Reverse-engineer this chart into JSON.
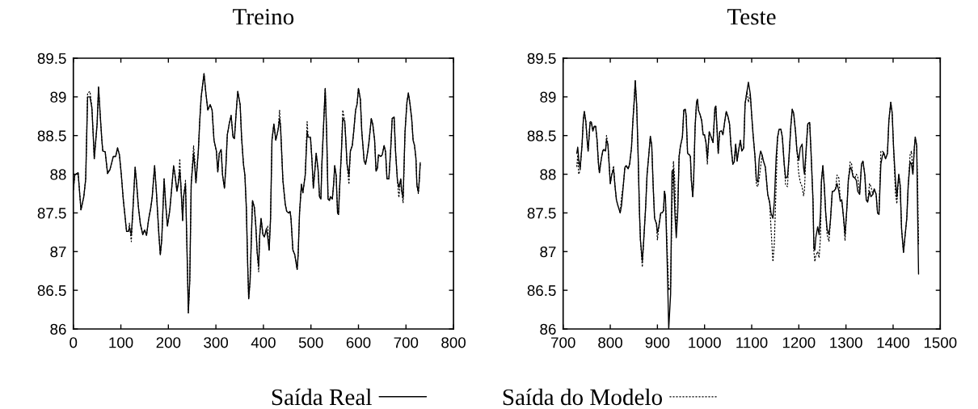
{
  "chart_data": [
    {
      "type": "line",
      "title": "Treino",
      "legend": "bottom",
      "xlim": [
        0,
        800
      ],
      "xticks": [
        0,
        100,
        200,
        300,
        400,
        500,
        600,
        700,
        800
      ],
      "ylim": [
        86,
        89.5
      ],
      "yticks": [
        86,
        86.5,
        87,
        87.5,
        88,
        88.5,
        89,
        89.5
      ],
      "x": [
        0,
        3,
        10,
        16,
        22,
        26,
        30,
        35,
        39,
        42,
        44,
        50,
        53,
        57,
        60,
        62,
        67,
        72,
        77,
        84,
        89,
        93,
        97,
        101,
        105,
        108,
        112,
        116,
        118,
        122,
        125,
        130,
        133,
        137,
        141,
        146,
        150,
        154,
        158,
        163,
        166,
        171,
        175,
        180,
        183,
        186,
        191,
        194,
        198,
        203,
        206,
        211,
        214,
        218,
        221,
        224,
        226,
        230,
        232,
        236,
        240,
        242,
        245,
        248,
        253,
        256,
        258,
        263,
        266,
        269,
        275,
        279,
        283,
        288,
        292,
        296,
        301,
        304,
        307,
        311,
        314,
        318,
        321,
        324,
        328,
        332,
        336,
        339,
        343,
        346,
        351,
        354,
        358,
        361,
        364,
        367,
        369,
        372,
        377,
        381,
        384,
        387,
        390,
        392,
        395,
        399,
        402,
        406,
        409,
        412,
        415,
        418,
        422,
        426,
        431,
        434,
        436,
        441,
        446,
        449,
        453,
        456,
        458,
        462,
        466,
        471,
        473,
        476,
        480,
        483,
        488,
        492,
        494,
        499,
        502,
        505,
        508,
        511,
        515,
        518,
        521,
        523,
        526,
        530,
        533,
        536,
        539,
        541,
        545,
        548,
        550,
        553,
        556,
        558,
        560,
        564,
        567,
        571,
        573,
        576,
        580,
        583,
        587,
        590,
        594,
        597,
        600,
        604,
        607,
        612,
        615,
        619,
        622,
        627,
        630,
        634,
        637,
        640,
        642,
        647,
        650,
        654,
        657,
        660,
        664,
        668,
        671,
        675,
        678,
        682,
        685,
        689,
        691,
        694,
        698,
        702,
        705,
        708,
        712,
        715,
        718,
        721,
        723,
        726,
        728,
        730
      ],
      "series": [
        {
          "name": "Saída Real",
          "color": "#000000",
          "line_style": "solid",
          "values": [
            87.8,
            87.99,
            88.02,
            87.54,
            87.71,
            87.94,
            89.0,
            89.0,
            88.86,
            88.48,
            88.2,
            88.65,
            89.13,
            88.72,
            88.44,
            88.3,
            88.29,
            88.01,
            88.06,
            88.23,
            88.23,
            88.34,
            88.25,
            87.99,
            87.68,
            87.5,
            87.26,
            87.26,
            87.31,
            87.22,
            87.5,
            88.09,
            87.89,
            87.57,
            87.36,
            87.22,
            87.28,
            87.21,
            87.4,
            87.57,
            87.71,
            88.11,
            87.75,
            87.22,
            86.96,
            87.15,
            87.94,
            87.64,
            87.33,
            87.54,
            87.75,
            88.11,
            87.99,
            87.78,
            87.89,
            88.04,
            87.89,
            87.4,
            87.71,
            87.87,
            86.8,
            86.21,
            86.63,
            87.87,
            88.27,
            88.06,
            87.89,
            88.3,
            88.69,
            89.0,
            89.3,
            89.04,
            88.83,
            88.9,
            88.83,
            88.44,
            88.3,
            88.03,
            88.27,
            88.32,
            87.99,
            87.82,
            88.1,
            88.51,
            88.65,
            88.76,
            88.48,
            88.46,
            88.83,
            89.07,
            88.9,
            88.48,
            88.13,
            87.99,
            87.57,
            86.81,
            86.39,
            86.63,
            87.66,
            87.57,
            87.33,
            86.98,
            86.81,
            87.19,
            87.43,
            87.22,
            87.19,
            87.29,
            87.19,
            87.02,
            87.43,
            88.44,
            88.65,
            88.44,
            88.58,
            88.72,
            88.62,
            87.92,
            87.61,
            87.52,
            87.5,
            87.52,
            87.43,
            87.02,
            86.96,
            86.77,
            86.95,
            87.5,
            87.87,
            87.76,
            87.99,
            88.55,
            88.48,
            88.48,
            88.2,
            87.82,
            88.03,
            88.27,
            88.06,
            87.71,
            87.68,
            88.13,
            88.55,
            89.11,
            88.55,
            87.68,
            87.66,
            87.71,
            87.68,
            87.89,
            88.11,
            87.99,
            87.5,
            87.48,
            87.78,
            88.27,
            88.72,
            88.69,
            88.48,
            88.13,
            87.99,
            88.3,
            88.37,
            88.55,
            88.83,
            88.9,
            89.11,
            88.97,
            88.55,
            88.17,
            88.13,
            88.27,
            88.41,
            88.72,
            88.65,
            88.44,
            88.04,
            88.08,
            88.25,
            88.23,
            88.25,
            88.37,
            88.29,
            87.94,
            87.94,
            88.34,
            88.72,
            88.74,
            88.3,
            87.92,
            87.83,
            87.94,
            87.78,
            87.7,
            88.55,
            88.93,
            89.05,
            88.93,
            88.72,
            88.44,
            88.37,
            88.2,
            87.86,
            87.77,
            87.92,
            88.15
          ]
        },
        {
          "name": "Saída do Modelo",
          "color": "#000000",
          "line_style": "dotted",
          "values": [
            87.8,
            87.99,
            88.02,
            87.54,
            87.71,
            87.94,
            89.05,
            89.07,
            88.86,
            88.48,
            88.2,
            88.65,
            89.13,
            88.72,
            88.44,
            88.3,
            88.29,
            88.01,
            88.06,
            88.23,
            88.23,
            88.34,
            88.25,
            87.99,
            87.68,
            87.5,
            87.26,
            87.26,
            87.37,
            87.13,
            87.5,
            88.09,
            87.89,
            87.57,
            87.36,
            87.22,
            87.28,
            87.21,
            87.4,
            87.57,
            87.71,
            88.11,
            87.75,
            87.22,
            86.96,
            87.15,
            87.94,
            87.64,
            87.33,
            87.54,
            87.75,
            88.11,
            87.99,
            87.78,
            87.89,
            88.2,
            87.89,
            87.4,
            87.71,
            87.92,
            86.8,
            86.21,
            86.63,
            87.87,
            88.37,
            88.15,
            87.89,
            88.3,
            88.69,
            89.0,
            89.3,
            89.04,
            88.83,
            88.9,
            88.83,
            88.44,
            88.3,
            88.03,
            88.27,
            88.32,
            87.99,
            87.82,
            88.1,
            88.51,
            88.65,
            88.76,
            88.48,
            88.46,
            88.83,
            89.07,
            88.9,
            88.48,
            88.13,
            87.99,
            87.57,
            86.81,
            86.39,
            86.63,
            87.66,
            87.57,
            87.33,
            86.98,
            86.74,
            87.19,
            87.43,
            87.22,
            87.19,
            87.29,
            87.33,
            87.02,
            87.43,
            88.44,
            88.65,
            88.44,
            88.58,
            88.83,
            88.62,
            87.92,
            87.61,
            87.52,
            87.5,
            87.52,
            87.43,
            87.02,
            86.96,
            86.77,
            86.95,
            87.5,
            87.87,
            87.76,
            87.99,
            88.68,
            88.48,
            88.48,
            88.2,
            87.82,
            88.03,
            88.27,
            88.06,
            87.71,
            87.68,
            88.13,
            88.55,
            89.11,
            88.55,
            87.68,
            87.66,
            87.71,
            87.68,
            87.89,
            88.11,
            87.99,
            87.5,
            87.48,
            87.78,
            88.27,
            88.83,
            88.69,
            88.48,
            88.13,
            87.87,
            88.3,
            88.37,
            88.55,
            88.83,
            88.9,
            89.11,
            88.97,
            88.55,
            88.17,
            88.13,
            88.27,
            88.41,
            88.72,
            88.65,
            88.44,
            88.04,
            88.08,
            88.25,
            88.23,
            88.25,
            88.37,
            88.29,
            87.94,
            87.94,
            88.34,
            88.72,
            88.74,
            88.3,
            87.92,
            87.7,
            87.94,
            87.78,
            87.63,
            88.55,
            88.93,
            89.05,
            88.93,
            88.72,
            88.44,
            88.37,
            88.2,
            87.86,
            87.75,
            87.92,
            88.15
          ]
        }
      ]
    },
    {
      "type": "line",
      "title": "Teste",
      "xlim": [
        700,
        1500
      ],
      "xticks": [
        700,
        800,
        900,
        1000,
        1100,
        1200,
        1300,
        1400,
        1500
      ],
      "ylim": [
        86,
        89.5
      ],
      "yticks": [
        86,
        86.5,
        87,
        87.5,
        88,
        88.5,
        89,
        89.5
      ],
      "x": [
        729,
        731,
        733,
        736,
        740,
        743,
        745,
        748,
        751,
        753,
        755,
        757,
        760,
        763,
        766,
        769,
        772,
        775,
        777,
        780,
        784,
        786,
        790,
        792,
        795,
        798,
        800,
        803,
        807,
        810,
        813,
        816,
        821,
        824,
        828,
        831,
        834,
        838,
        841,
        845,
        848,
        851,
        853,
        856,
        859,
        862,
        864,
        868,
        871,
        875,
        878,
        882,
        885,
        888,
        891,
        894,
        898,
        900,
        903,
        907,
        910,
        913,
        915,
        917,
        921,
        924,
        928,
        931,
        934,
        937,
        940,
        943,
        946,
        949,
        953,
        956,
        959,
        961,
        964,
        968,
        970,
        972,
        975,
        977,
        980,
        983,
        985,
        987,
        991,
        994,
        997,
        1000,
        1003,
        1006,
        1008,
        1010,
        1014,
        1018,
        1022,
        1024,
        1029,
        1032,
        1036,
        1039,
        1043,
        1046,
        1050,
        1053,
        1056,
        1060,
        1063,
        1066,
        1069,
        1072,
        1076,
        1079,
        1083,
        1086,
        1090,
        1093,
        1097,
        1100,
        1103,
        1107,
        1110,
        1113,
        1116,
        1119,
        1122,
        1125,
        1129,
        1132,
        1134,
        1138,
        1141,
        1145,
        1148,
        1152,
        1155,
        1158,
        1162,
        1165,
        1169,
        1172,
        1176,
        1179,
        1183,
        1186,
        1189,
        1193,
        1196,
        1200,
        1203,
        1207,
        1210,
        1212,
        1216,
        1219,
        1223,
        1226,
        1230,
        1232,
        1234,
        1236,
        1240,
        1243,
        1246,
        1248,
        1251,
        1254,
        1257,
        1260,
        1264,
        1267,
        1271,
        1274,
        1278,
        1281,
        1285,
        1288,
        1291,
        1295,
        1298,
        1302,
        1305,
        1309,
        1312,
        1315,
        1319,
        1322,
        1325,
        1329,
        1333,
        1336,
        1340,
        1343,
        1346,
        1350,
        1353,
        1357,
        1360,
        1364,
        1367,
        1370,
        1374,
        1377,
        1380,
        1384,
        1388,
        1391,
        1395,
        1398,
        1401,
        1405,
        1408,
        1412,
        1415,
        1418,
        1422,
        1425,
        1429,
        1432,
        1436,
        1439,
        1442,
        1445,
        1447,
        1450,
        1452,
        1454
      ],
      "series": [
        {
          "color": "#000000",
          "line_style": "solid",
          "values": [
            88.27,
            88.35,
            88.2,
            88.07,
            88.37,
            88.72,
            88.81,
            88.69,
            88.44,
            88.3,
            88.48,
            88.65,
            88.67,
            88.56,
            88.62,
            88.62,
            88.44,
            88.13,
            88.02,
            88.16,
            88.3,
            88.32,
            88.3,
            88.44,
            88.39,
            88.09,
            87.88,
            87.99,
            88.07,
            87.85,
            87.67,
            87.6,
            87.5,
            87.6,
            87.88,
            88.09,
            88.11,
            88.07,
            88.13,
            88.34,
            88.69,
            88.97,
            89.21,
            88.9,
            88.27,
            87.5,
            87.15,
            86.88,
            87.15,
            87.57,
            87.99,
            88.27,
            88.49,
            88.37,
            87.85,
            87.43,
            87.36,
            87.25,
            87.32,
            87.5,
            87.5,
            87.53,
            87.78,
            87.71,
            86.8,
            86.0,
            86.45,
            88.04,
            88.06,
            87.5,
            87.18,
            87.5,
            88.23,
            88.37,
            88.48,
            88.83,
            88.84,
            88.76,
            88.27,
            88.25,
            88.23,
            87.92,
            87.71,
            87.95,
            88.62,
            88.93,
            88.97,
            88.83,
            88.76,
            88.69,
            88.51,
            88.51,
            88.41,
            88.2,
            88.37,
            88.55,
            88.48,
            88.41,
            88.86,
            88.88,
            88.27,
            88.55,
            88.56,
            88.51,
            88.69,
            88.81,
            88.74,
            88.65,
            88.37,
            88.13,
            88.16,
            88.39,
            88.17,
            88.3,
            88.44,
            88.3,
            88.34,
            88.91,
            89.07,
            89.19,
            89.04,
            88.76,
            88.51,
            88.23,
            87.92,
            87.9,
            88.2,
            88.3,
            88.25,
            88.17,
            88.09,
            87.88,
            87.74,
            87.64,
            87.5,
            87.43,
            87.64,
            88.23,
            88.48,
            88.58,
            88.58,
            88.48,
            88.13,
            87.95,
            87.97,
            88.2,
            88.62,
            88.84,
            88.79,
            88.55,
            88.3,
            88.18,
            88.34,
            88.39,
            88.09,
            88.0,
            88.37,
            88.65,
            88.67,
            88.27,
            87.67,
            87.04,
            87.02,
            87.18,
            87.32,
            87.22,
            87.5,
            87.92,
            88.11,
            87.85,
            87.5,
            87.29,
            87.22,
            87.4,
            87.78,
            87.78,
            87.81,
            87.88,
            87.78,
            87.65,
            87.67,
            87.43,
            87.22,
            87.57,
            87.92,
            88.09,
            88.06,
            87.97,
            87.95,
            87.92,
            87.78,
            87.74,
            88.13,
            88.17,
            87.99,
            87.67,
            87.64,
            87.78,
            87.71,
            87.74,
            87.81,
            87.74,
            87.5,
            87.48,
            88.13,
            88.23,
            88.28,
            88.2,
            88.27,
            88.69,
            88.93,
            88.79,
            88.34,
            87.92,
            87.71,
            88.0,
            87.85,
            87.29,
            86.99,
            87.18,
            87.43,
            87.85,
            88.16,
            88.13,
            88.0,
            88.34,
            88.48,
            88.37,
            87.5,
            86.71
          ]
        },
        {
          "color": "#000000",
          "line_style": "dotted",
          "values": [
            88.1,
            88.25,
            88.0,
            88.05,
            88.37,
            88.72,
            88.81,
            88.69,
            88.44,
            88.3,
            88.48,
            88.69,
            88.67,
            88.56,
            88.62,
            88.62,
            88.44,
            88.13,
            88.02,
            88.16,
            88.3,
            88.32,
            88.3,
            88.5,
            88.39,
            88.09,
            87.88,
            87.99,
            88.11,
            87.85,
            87.67,
            87.6,
            87.5,
            87.71,
            87.88,
            88.09,
            88.11,
            88.07,
            88.13,
            88.34,
            88.69,
            88.97,
            89.21,
            88.9,
            88.27,
            87.5,
            87.15,
            86.8,
            87.15,
            87.57,
            87.99,
            88.27,
            88.49,
            88.37,
            87.85,
            87.43,
            87.36,
            87.15,
            87.32,
            87.5,
            87.5,
            87.53,
            87.78,
            87.71,
            87.0,
            86.5,
            86.55,
            87.6,
            88.17,
            87.9,
            87.3,
            87.5,
            88.23,
            88.37,
            88.48,
            88.83,
            88.84,
            88.76,
            88.27,
            88.25,
            88.23,
            87.92,
            87.71,
            87.95,
            88.62,
            88.93,
            88.97,
            88.83,
            88.76,
            88.69,
            88.51,
            88.51,
            88.41,
            88.13,
            88.37,
            88.55,
            88.48,
            88.41,
            88.86,
            88.88,
            88.27,
            88.55,
            88.56,
            88.51,
            88.69,
            88.81,
            88.74,
            88.65,
            88.37,
            88.13,
            88.16,
            88.39,
            88.17,
            88.3,
            88.44,
            88.3,
            88.34,
            88.91,
            89.07,
            88.93,
            89.04,
            88.76,
            88.51,
            88.23,
            87.86,
            87.84,
            87.95,
            88.1,
            88.25,
            88.17,
            88.09,
            87.88,
            87.74,
            87.64,
            87.3,
            86.87,
            87.1,
            87.9,
            88.48,
            88.58,
            88.58,
            88.48,
            88.13,
            87.86,
            87.84,
            88.2,
            88.62,
            88.84,
            88.79,
            88.55,
            88.3,
            88.0,
            87.9,
            87.84,
            87.72,
            87.8,
            88.37,
            88.65,
            88.67,
            88.27,
            87.67,
            87.0,
            86.87,
            86.95,
            87.0,
            86.92,
            87.2,
            87.92,
            88.11,
            87.85,
            87.5,
            87.22,
            87.13,
            87.4,
            87.78,
            87.78,
            87.81,
            87.99,
            87.95,
            87.65,
            87.67,
            87.43,
            87.14,
            87.57,
            87.92,
            88.16,
            88.13,
            87.97,
            87.95,
            88.0,
            87.97,
            87.74,
            88.13,
            88.17,
            87.99,
            87.67,
            87.64,
            87.88,
            87.84,
            87.74,
            87.81,
            87.74,
            87.5,
            87.48,
            88.3,
            88.3,
            88.28,
            88.2,
            88.27,
            88.69,
            88.93,
            88.79,
            88.34,
            87.75,
            87.62,
            88.0,
            87.85,
            87.29,
            86.99,
            87.18,
            87.43,
            87.85,
            88.25,
            88.3,
            88.0,
            88.34,
            88.48,
            88.37,
            87.9,
            87.1
          ]
        }
      ]
    }
  ]
}
